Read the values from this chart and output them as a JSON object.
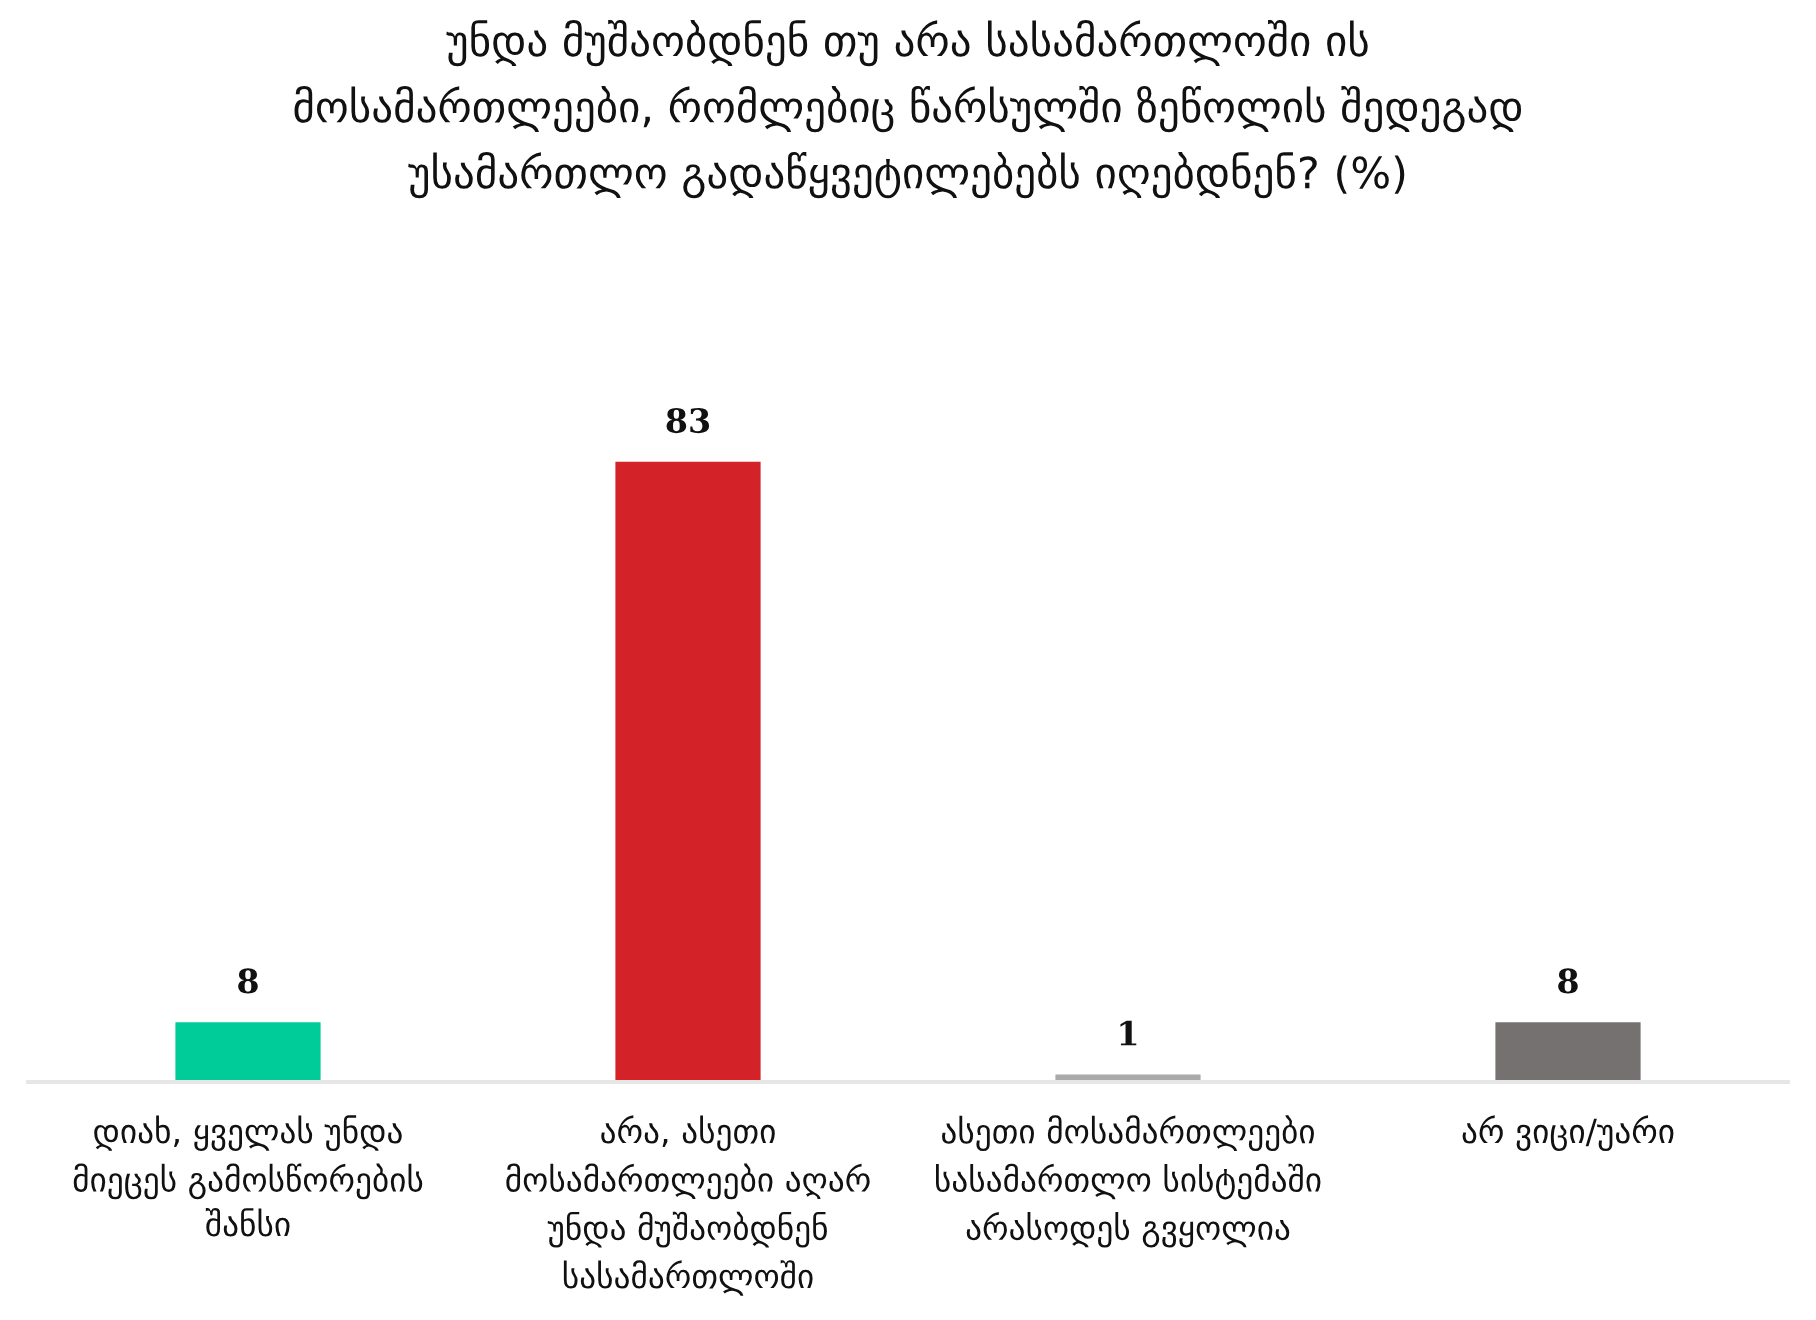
{
  "chart_data": {
    "type": "bar",
    "title": "უნდა მუშაობდნენ თუ არა სასამართლოში ის მოსამართლეები, რომლებიც წარსულში ზეწოლის შედეგად უსამართლო გადაწყვეტილებებს იღებდნენ? (%)",
    "categories": [
      "დიახ, ყველას უნდა მიეცეს გამოსწორების შანსი",
      "არა, ასეთი მოსამართლეები აღარ უნდა მუშაობდნენ სასამართლოში",
      "ასეთი მოსამართლეები სასამართლო სისტემაში არასოდეს გვყოლია",
      "არ ვიცი/უარი"
    ],
    "values": [
      8,
      83,
      1,
      8
    ],
    "colors": [
      "#00cc99",
      "#d42229",
      "#aaaaaa",
      "#757170"
    ],
    "data_labels": true
  }
}
